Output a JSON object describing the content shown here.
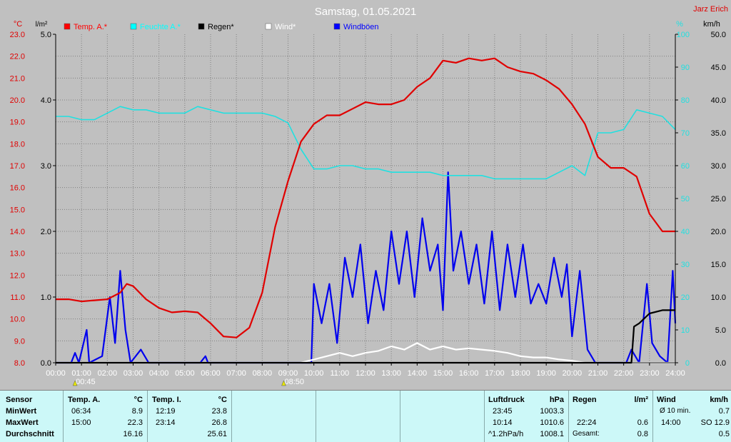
{
  "header": {
    "title": "Samstag, 01.05.2021",
    "author": "Jarz Erich"
  },
  "axes": {
    "left_outer_unit": "°C",
    "left_inner_unit": "l/m²",
    "right_inner_unit": "%",
    "right_outer_unit": "km/h"
  },
  "legend": [
    {
      "label": "Temp. A.*",
      "color": "#ff0000"
    },
    {
      "label": "Feuchte A.*",
      "color": "#00ffff"
    },
    {
      "label": "Regen*",
      "color": "#000000"
    },
    {
      "label": "Wind*",
      "color": "#ffffff"
    },
    {
      "label": "Windböen",
      "color": "#0000ff"
    }
  ],
  "colors": {
    "temp": "#e00000",
    "humidity": "#20e0e0",
    "rain": "#000000",
    "wind": "#ffffff",
    "gusts": "#0000ee",
    "plot_bg": "#c0c0c0",
    "grid": "#808080"
  },
  "markers": [
    {
      "time": "00:45"
    },
    {
      "time": "08:50"
    }
  ],
  "chart_data": {
    "type": "line",
    "title": "Samstag, 01.05.2021",
    "x_ticks": [
      "00:00",
      "01:00",
      "02:00",
      "03:00",
      "04:00",
      "05:00",
      "06:00",
      "07:00",
      "08:00",
      "09:00",
      "10:00",
      "11:00",
      "12:00",
      "13:00",
      "14:00",
      "15:00",
      "16:00",
      "17:00",
      "18:00",
      "19:00",
      "20:00",
      "21:00",
      "22:00",
      "23:00",
      "24:00"
    ],
    "xlim_hours": [
      0,
      24
    ],
    "temp_ticks": [
      "8.0",
      "9.0",
      "10.0",
      "11.0",
      "12.0",
      "13.0",
      "14.0",
      "15.0",
      "16.0",
      "17.0",
      "18.0",
      "19.0",
      "20.0",
      "21.0",
      "22.0",
      "23.0"
    ],
    "temp_lim": [
      8,
      23
    ],
    "rain_ticks": [
      "0.0",
      "1.0",
      "2.0",
      "3.0",
      "4.0",
      "5.0"
    ],
    "rain_lim": [
      0,
      5
    ],
    "hum_ticks": [
      "0",
      "10",
      "20",
      "30",
      "40",
      "50",
      "60",
      "70",
      "80",
      "90",
      "100"
    ],
    "hum_lim": [
      0,
      100
    ],
    "wind_ticks": [
      "0.0",
      "5.0",
      "10.0",
      "15.0",
      "20.0",
      "25.0",
      "30.0",
      "35.0",
      "40.0",
      "45.0",
      "50.0"
    ],
    "wind_lim": [
      0,
      50
    ],
    "grid": true,
    "series": [
      {
        "name": "Temp. A.*",
        "axis": "temp",
        "points": [
          [
            0,
            10.9
          ],
          [
            0.5,
            10.9
          ],
          [
            1,
            10.8
          ],
          [
            1.5,
            10.85
          ],
          [
            2,
            10.9
          ],
          [
            2.5,
            11.2
          ],
          [
            2.75,
            11.6
          ],
          [
            3,
            11.5
          ],
          [
            3.5,
            10.9
          ],
          [
            4,
            10.5
          ],
          [
            4.5,
            10.3
          ],
          [
            5,
            10.35
          ],
          [
            5.5,
            10.3
          ],
          [
            6,
            9.8
          ],
          [
            6.5,
            9.2
          ],
          [
            7,
            9.15
          ],
          [
            7.5,
            9.6
          ],
          [
            8,
            11.2
          ],
          [
            8.5,
            14.2
          ],
          [
            9,
            16.3
          ],
          [
            9.5,
            18.1
          ],
          [
            10,
            18.9
          ],
          [
            10.5,
            19.3
          ],
          [
            11,
            19.3
          ],
          [
            11.5,
            19.6
          ],
          [
            12,
            19.9
          ],
          [
            12.5,
            19.8
          ],
          [
            13,
            19.8
          ],
          [
            13.5,
            20.0
          ],
          [
            14,
            20.6
          ],
          [
            14.5,
            21.0
          ],
          [
            15,
            21.8
          ],
          [
            15.5,
            21.7
          ],
          [
            16,
            21.9
          ],
          [
            16.5,
            21.8
          ],
          [
            17,
            21.9
          ],
          [
            17.5,
            21.5
          ],
          [
            18,
            21.3
          ],
          [
            18.5,
            21.2
          ],
          [
            19,
            20.9
          ],
          [
            19.5,
            20.5
          ],
          [
            20,
            19.8
          ],
          [
            20.5,
            18.9
          ],
          [
            21,
            17.4
          ],
          [
            21.5,
            16.9
          ],
          [
            22,
            16.9
          ],
          [
            22.5,
            16.5
          ],
          [
            23,
            14.8
          ],
          [
            23.5,
            14.0
          ],
          [
            24,
            14.0
          ]
        ]
      },
      {
        "name": "Feuchte A.*",
        "axis": "hum",
        "points": [
          [
            0,
            75
          ],
          [
            0.5,
            75
          ],
          [
            1,
            74
          ],
          [
            1.5,
            74
          ],
          [
            2,
            76
          ],
          [
            2.5,
            78
          ],
          [
            3,
            77
          ],
          [
            3.5,
            77
          ],
          [
            4,
            76
          ],
          [
            4.5,
            76
          ],
          [
            5,
            76
          ],
          [
            5.5,
            78
          ],
          [
            6,
            77
          ],
          [
            6.5,
            76
          ],
          [
            7,
            76
          ],
          [
            7.5,
            76
          ],
          [
            8,
            76
          ],
          [
            8.5,
            75
          ],
          [
            9,
            73
          ],
          [
            9.5,
            65
          ],
          [
            10,
            59
          ],
          [
            10.5,
            59
          ],
          [
            11,
            60
          ],
          [
            11.5,
            60
          ],
          [
            12,
            59
          ],
          [
            12.5,
            59
          ],
          [
            13,
            58
          ],
          [
            13.5,
            58
          ],
          [
            14,
            58
          ],
          [
            14.5,
            58
          ],
          [
            15,
            57
          ],
          [
            15.5,
            57
          ],
          [
            16,
            57
          ],
          [
            16.5,
            57
          ],
          [
            17,
            56
          ],
          [
            17.5,
            56
          ],
          [
            18,
            56
          ],
          [
            18.5,
            56
          ],
          [
            19,
            56
          ],
          [
            19.5,
            58
          ],
          [
            20,
            60
          ],
          [
            20.5,
            57
          ],
          [
            21,
            70
          ],
          [
            21.5,
            70
          ],
          [
            22,
            71
          ],
          [
            22.5,
            77
          ],
          [
            23,
            76
          ],
          [
            23.5,
            75
          ],
          [
            24,
            71
          ]
        ]
      },
      {
        "name": "Regen*",
        "axis": "rain",
        "points": [
          [
            0,
            0
          ],
          [
            22.3,
            0
          ],
          [
            22.4,
            0.55
          ],
          [
            22.6,
            0.6
          ],
          [
            23,
            0.75
          ],
          [
            23.5,
            0.8
          ],
          [
            24,
            0.8
          ]
        ]
      },
      {
        "name": "Wind*",
        "axis": "wind",
        "points": [
          [
            0,
            0
          ],
          [
            9.5,
            0
          ],
          [
            10,
            0.5
          ],
          [
            10.5,
            1
          ],
          [
            11,
            1.5
          ],
          [
            11.5,
            1
          ],
          [
            12,
            1.5
          ],
          [
            12.5,
            1.8
          ],
          [
            13,
            2.5
          ],
          [
            13.5,
            2
          ],
          [
            14,
            3
          ],
          [
            14.5,
            2
          ],
          [
            15,
            2.5
          ],
          [
            15.5,
            2
          ],
          [
            16,
            2.2
          ],
          [
            16.5,
            2
          ],
          [
            17,
            1.8
          ],
          [
            17.5,
            1.5
          ],
          [
            18,
            1
          ],
          [
            18.5,
            0.8
          ],
          [
            19,
            0.8
          ],
          [
            19.5,
            0.5
          ],
          [
            20,
            0.3
          ],
          [
            20.5,
            0
          ],
          [
            24,
            0
          ]
        ]
      },
      {
        "name": "Windböen",
        "axis": "wind",
        "points": [
          [
            0,
            0
          ],
          [
            0.6,
            0
          ],
          [
            0.75,
            1.5
          ],
          [
            0.9,
            0
          ],
          [
            1.2,
            5
          ],
          [
            1.3,
            0
          ],
          [
            1.8,
            1
          ],
          [
            2.1,
            10
          ],
          [
            2.3,
            3
          ],
          [
            2.5,
            14
          ],
          [
            2.7,
            5
          ],
          [
            2.9,
            0
          ],
          [
            3.3,
            2
          ],
          [
            3.6,
            0
          ],
          [
            5.6,
            0
          ],
          [
            5.8,
            1
          ],
          [
            5.9,
            0
          ],
          [
            9.9,
            0
          ],
          [
            10,
            12
          ],
          [
            10.3,
            6
          ],
          [
            10.6,
            12
          ],
          [
            10.9,
            3
          ],
          [
            11.2,
            16
          ],
          [
            11.5,
            10
          ],
          [
            11.8,
            18
          ],
          [
            12.1,
            6
          ],
          [
            12.4,
            14
          ],
          [
            12.7,
            8
          ],
          [
            13,
            20
          ],
          [
            13.3,
            12
          ],
          [
            13.6,
            20
          ],
          [
            13.9,
            10
          ],
          [
            14.2,
            22
          ],
          [
            14.5,
            14
          ],
          [
            14.8,
            18
          ],
          [
            15.0,
            8
          ],
          [
            15.2,
            29
          ],
          [
            15.4,
            14
          ],
          [
            15.7,
            20
          ],
          [
            16.0,
            12
          ],
          [
            16.3,
            18
          ],
          [
            16.6,
            9
          ],
          [
            16.9,
            20
          ],
          [
            17.2,
            8
          ],
          [
            17.5,
            18
          ],
          [
            17.8,
            10
          ],
          [
            18.1,
            18
          ],
          [
            18.4,
            9
          ],
          [
            18.7,
            12
          ],
          [
            19.0,
            9
          ],
          [
            19.3,
            16
          ],
          [
            19.6,
            10
          ],
          [
            19.8,
            15
          ],
          [
            20.0,
            4
          ],
          [
            20.3,
            14
          ],
          [
            20.6,
            2
          ],
          [
            20.9,
            0
          ],
          [
            22.1,
            0
          ],
          [
            22.3,
            2
          ],
          [
            22.6,
            0
          ],
          [
            22.9,
            12
          ],
          [
            23.1,
            3
          ],
          [
            23.4,
            1
          ],
          [
            23.7,
            0
          ],
          [
            23.9,
            14
          ],
          [
            24,
            6
          ]
        ]
      }
    ]
  },
  "stats": {
    "sensor": {
      "header": "Sensor",
      "min": "MinWert",
      "max": "MaxWert",
      "avg": "Durchschnitt"
    },
    "temp_a": {
      "header": "Temp. A.",
      "unit": "°C",
      "min_time": "06:34",
      "min_val": "8.9",
      "max_time": "15:00",
      "max_val": "22.3",
      "avg_val": "16.16"
    },
    "temp_i": {
      "header": "Temp. I.",
      "unit": "°C",
      "min_time": "12:19",
      "min_val": "23.8",
      "max_time": "23:14",
      "max_val": "26.8",
      "avg_val": "25.61"
    },
    "pressure": {
      "header": "Luftdruck",
      "unit": "hPa",
      "min_time": "23:45",
      "min_val": "1003.3",
      "max_time": "10:14",
      "max_val": "1010.6",
      "avg_label": "^1.2hPa/h",
      "avg_val": "1008.1"
    },
    "rain": {
      "header": "Regen",
      "unit": "l/m²",
      "max_time": "22:24",
      "max_val": "0.6",
      "total_label": "Gesamt:",
      "total_val": "0.8"
    },
    "wind": {
      "header": "Wind",
      "unit": "km/h",
      "min_label": "Ø 10 min.",
      "min_val": "0.7",
      "max_time": "14:00",
      "max_val": "SO 12.9",
      "avg_val": "0.5"
    }
  }
}
